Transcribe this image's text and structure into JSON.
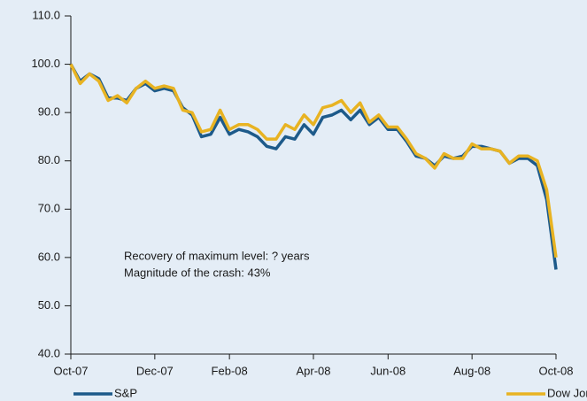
{
  "chart_data": {
    "type": "line",
    "categories": [
      "Oct-07",
      null,
      null,
      null,
      null,
      null,
      null,
      null,
      null,
      "Dec-07",
      null,
      null,
      null,
      null,
      null,
      null,
      null,
      "Feb-08",
      null,
      null,
      null,
      null,
      null,
      null,
      null,
      null,
      "Apr-08",
      null,
      null,
      null,
      null,
      null,
      null,
      null,
      "Jun-08",
      null,
      null,
      null,
      null,
      null,
      null,
      null,
      null,
      "Aug-08",
      null,
      null,
      null,
      null,
      null,
      null,
      null,
      null,
      "Oct-08"
    ],
    "series": [
      {
        "name": "S&P",
        "color": "#1d5a8a",
        "values": [
          100,
          96.5,
          98,
          97,
          93,
          93,
          92.5,
          95,
          96,
          94.5,
          95,
          94.5,
          91,
          89.5,
          85,
          85.5,
          89,
          85.5,
          86.5,
          86,
          85,
          83,
          82.5,
          85,
          84.5,
          87.5,
          85.5,
          89,
          89.5,
          90.5,
          88.5,
          90.5,
          87.5,
          89,
          86.5,
          86.5,
          84,
          81,
          80.5,
          79,
          81,
          80.5,
          81,
          83,
          83,
          82.5,
          82,
          79.5,
          80.5,
          80.5,
          79,
          72,
          57.5
        ]
      },
      {
        "name": "Dow Jones",
        "color": "#e8b322",
        "values": [
          100,
          96,
          98,
          96.5,
          92.5,
          93.5,
          92,
          95,
          96.5,
          95,
          95.5,
          95,
          90.5,
          90,
          86,
          86.5,
          90.5,
          86.5,
          87.5,
          87.5,
          86.5,
          84.5,
          84.5,
          87.5,
          86.5,
          89.5,
          87.5,
          91,
          91.5,
          92.5,
          90,
          92,
          88,
          89.5,
          87,
          87,
          84.5,
          81.5,
          80.5,
          78.5,
          81.5,
          80.5,
          80.5,
          83.5,
          82.5,
          82.5,
          82,
          79.5,
          81,
          81,
          80,
          74,
          60
        ]
      }
    ],
    "annotations": [
      "Recovery of maximum level: ? years",
      "Magnitude of the crash: 43%"
    ],
    "ylim": [
      40,
      110
    ],
    "yticks": [
      {
        "value": 40,
        "label": "40.0"
      },
      {
        "value": 50,
        "label": "50.0"
      },
      {
        "value": 60,
        "label": "60.0"
      },
      {
        "value": 70,
        "label": "70.0"
      },
      {
        "value": 80,
        "label": "80.0"
      },
      {
        "value": 90,
        "label": "90.0"
      },
      {
        "value": 100,
        "label": "100.0"
      },
      {
        "value": 110,
        "label": "110.0"
      }
    ],
    "grid": false
  }
}
